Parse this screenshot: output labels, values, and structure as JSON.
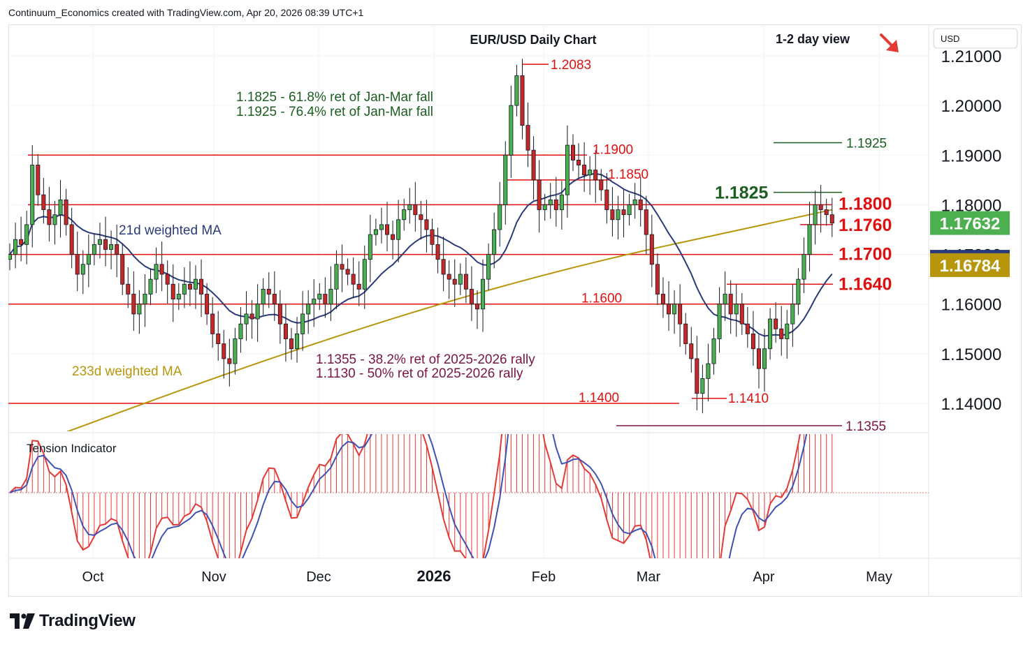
{
  "header": {
    "text": "Continuum_Economics created with TradingView.com, Apr 20, 2026 08:39 UTC+1"
  },
  "brand": {
    "name": "TradingView"
  },
  "icons": {
    "brand_logo": "tradingview-logo-icon",
    "view_arrow": "arrow-down-right-icon"
  },
  "chart_data": {
    "type": "candlestick",
    "title": "EUR/USD Daily Chart",
    "view_label": "1-2 day view",
    "currency": "USD",
    "y_ticks": [
      "1.21000",
      "1.20000",
      "1.19000",
      "1.18000",
      "1.17000",
      "1.16000",
      "1.15000",
      "1.14000"
    ],
    "y_tick_values": [
      1.21,
      1.2,
      1.19,
      1.18,
      1.17,
      1.16,
      1.15,
      1.14
    ],
    "ylim": [
      1.1335,
      1.2185
    ],
    "x_ticks": [
      "Oct",
      "Nov",
      "Dec",
      "2026",
      "Feb",
      "Mar",
      "Apr",
      "May"
    ],
    "price_tags": [
      {
        "label": "1.17632",
        "value": 1.17632,
        "color": "#4caf50"
      },
      {
        "label": "1.16852",
        "value": 1.16852,
        "color": "#2a3a7a"
      },
      {
        "label": "1.16784",
        "value": 1.16784,
        "color": "#b8960b"
      }
    ],
    "levels": [
      {
        "label": "1.2083",
        "value": 1.2083
      },
      {
        "label": "1.1900",
        "value": 1.19
      },
      {
        "label": "1.1850",
        "value": 1.185
      },
      {
        "label": "1.1800",
        "value": 1.18
      },
      {
        "label": "1.1760",
        "value": 1.176
      },
      {
        "label": "1.1700",
        "value": 1.17
      },
      {
        "label": "1.1640",
        "value": 1.164
      },
      {
        "label": "1.1600",
        "value": 1.16
      },
      {
        "label": "1.1400",
        "value": 1.14
      },
      {
        "label": "1.1410",
        "value": 1.141
      },
      {
        "label": "1.1355",
        "value": 1.1355
      },
      {
        "label": "1.1925",
        "value": 1.1925
      },
      {
        "label": "1.1825",
        "value": 1.1825
      }
    ],
    "annotations": {
      "fib_jan_mar_1": "1.1825 - 61.8% ret of Jan-Mar fall",
      "fib_jan_mar_2": "1.1925 - 76.4% ret of Jan-Mar fall",
      "fib_rally_1": "1.1355 - 38.2% ret of 2025-2026 rally",
      "fib_rally_2": "1.1130 - 50% ret of 2025-2026 rally"
    },
    "series_labels": {
      "ma21": "21d weighted MA",
      "ma233": "233d weighted MA",
      "tension": "Tension Indicator"
    },
    "closes": [
      1.17,
      1.173,
      1.172,
      1.176,
      1.188,
      1.182,
      1.179,
      1.176,
      1.178,
      1.181,
      1.176,
      1.17,
      1.166,
      1.168,
      1.17,
      1.172,
      1.173,
      1.171,
      1.172,
      1.17,
      1.164,
      1.162,
      1.158,
      1.16,
      1.162,
      1.165,
      1.168,
      1.166,
      1.164,
      1.161,
      1.162,
      1.164,
      1.163,
      1.165,
      1.162,
      1.158,
      1.154,
      1.152,
      1.149,
      1.148,
      1.153,
      1.156,
      1.158,
      1.157,
      1.16,
      1.163,
      1.162,
      1.16,
      1.156,
      1.153,
      1.151,
      1.154,
      1.158,
      1.16,
      1.161,
      1.162,
      1.16,
      1.163,
      1.168,
      1.167,
      1.166,
      1.164,
      1.163,
      1.169,
      1.174,
      1.175,
      1.176,
      1.174,
      1.173,
      1.177,
      1.179,
      1.18,
      1.178,
      1.177,
      1.175,
      1.172,
      1.169,
      1.166,
      1.165,
      1.164,
      1.166,
      1.163,
      1.16,
      1.159,
      1.165,
      1.17,
      1.175,
      1.18,
      1.19,
      1.2,
      1.206,
      1.196,
      1.191,
      1.185,
      1.179,
      1.18,
      1.181,
      1.179,
      1.182,
      1.192,
      1.189,
      1.188,
      1.186,
      1.187,
      1.185,
      1.183,
      1.179,
      1.177,
      1.179,
      1.178,
      1.18,
      1.181,
      1.179,
      1.174,
      1.168,
      1.162,
      1.16,
      1.158,
      1.16,
      1.156,
      1.152,
      1.149,
      1.142,
      1.145,
      1.148,
      1.153,
      1.16,
      1.162,
      1.158,
      1.16,
      1.156,
      1.154,
      1.151,
      1.147,
      1.151,
      1.157,
      1.155,
      1.153,
      1.156,
      1.16,
      1.165,
      1.17,
      1.176,
      1.18,
      1.179,
      1.178,
      1.1763
    ]
  }
}
